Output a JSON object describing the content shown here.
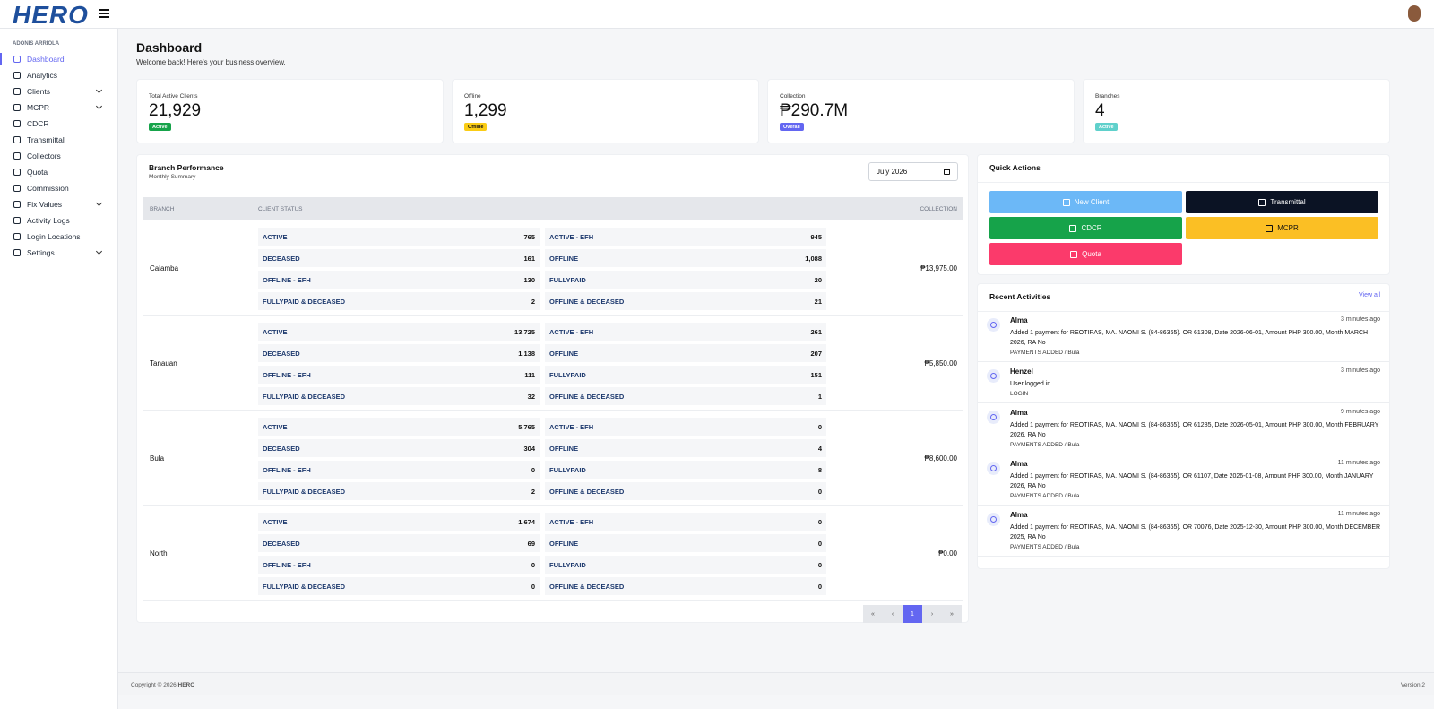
{
  "header": {
    "logo": "HERO"
  },
  "sidebar": {
    "user": "ADONIS ARRIOLA",
    "items": [
      {
        "label": "Dashboard",
        "active": true
      },
      {
        "label": "Analytics"
      },
      {
        "label": "Clients",
        "expandable": true
      },
      {
        "label": "MCPR",
        "expandable": true
      },
      {
        "label": "CDCR"
      },
      {
        "label": "Transmittal"
      },
      {
        "label": "Collectors"
      },
      {
        "label": "Quota"
      },
      {
        "label": "Commission"
      },
      {
        "label": "Fix Values",
        "expandable": true
      },
      {
        "label": "Activity Logs"
      },
      {
        "label": "Login Locations"
      },
      {
        "label": "Settings",
        "expandable": true
      }
    ]
  },
  "page": {
    "title": "Dashboard",
    "subtitle": "Welcome back! Here's your business overview."
  },
  "stats": [
    {
      "label": "Total Active Clients",
      "value": "21,929",
      "badge": "Active",
      "color": "#16a34a"
    },
    {
      "label": "Offline",
      "value": "1,299",
      "badge": "Offline",
      "color": "#facc15"
    },
    {
      "label": "Collection",
      "value": "₱290.7M",
      "badge": "Overall",
      "color": "#6366f1"
    },
    {
      "label": "Branches",
      "value": "4",
      "badge": "Active",
      "color": "#5fd0cb"
    }
  ],
  "branch_performance": {
    "title": "Branch Performance",
    "subtitle": "Monthly Summary",
    "month": "July 2026",
    "columns": [
      "BRANCH",
      "CLIENT STATUS",
      "COLLECTION"
    ],
    "rows": [
      {
        "branch": "Calamba",
        "statuses": [
          [
            "ACTIVE",
            "765"
          ],
          [
            "ACTIVE - EFH",
            "945"
          ],
          [
            "DECEASED",
            "161"
          ],
          [
            "OFFLINE",
            "1,088"
          ],
          [
            "OFFLINE - EFH",
            "130"
          ],
          [
            "FULLYPAID",
            "20"
          ],
          [
            "FULLYPAID & DECEASED",
            "2"
          ],
          [
            "OFFLINE & DECEASED",
            "21"
          ]
        ],
        "collection": "₱13,975.00"
      },
      {
        "branch": "Tanauan",
        "statuses": [
          [
            "ACTIVE",
            "13,725"
          ],
          [
            "ACTIVE - EFH",
            "261"
          ],
          [
            "DECEASED",
            "1,138"
          ],
          [
            "OFFLINE",
            "207"
          ],
          [
            "OFFLINE - EFH",
            "111"
          ],
          [
            "FULLYPAID",
            "151"
          ],
          [
            "FULLYPAID & DECEASED",
            "32"
          ],
          [
            "OFFLINE & DECEASED",
            "1"
          ]
        ],
        "collection": "₱5,850.00"
      },
      {
        "branch": "Bula",
        "statuses": [
          [
            "ACTIVE",
            "5,765"
          ],
          [
            "ACTIVE - EFH",
            "0"
          ],
          [
            "DECEASED",
            "304"
          ],
          [
            "OFFLINE",
            "4"
          ],
          [
            "OFFLINE - EFH",
            "0"
          ],
          [
            "FULLYPAID",
            "8"
          ],
          [
            "FULLYPAID & DECEASED",
            "2"
          ],
          [
            "OFFLINE & DECEASED",
            "0"
          ]
        ],
        "collection": "₱8,600.00"
      },
      {
        "branch": "North",
        "statuses": [
          [
            "ACTIVE",
            "1,674"
          ],
          [
            "ACTIVE - EFH",
            "0"
          ],
          [
            "DECEASED",
            "69"
          ],
          [
            "OFFLINE",
            "0"
          ],
          [
            "OFFLINE - EFH",
            "0"
          ],
          [
            "FULLYPAID",
            "0"
          ],
          [
            "FULLYPAID & DECEASED",
            "0"
          ],
          [
            "OFFLINE & DECEASED",
            "0"
          ]
        ],
        "collection": "₱0.00"
      }
    ],
    "pagination": [
      "«",
      "‹",
      "1",
      "›",
      "»"
    ],
    "current_page": "1"
  },
  "quick_actions": {
    "title": "Quick Actions",
    "buttons": [
      {
        "label": "New Client",
        "color": "#6cb8f7"
      },
      {
        "label": "Transmittal",
        "color": "#0b1324"
      },
      {
        "label": "CDCR",
        "color": "#16a34a"
      },
      {
        "label": "MCPR",
        "color": "#fbbf24"
      },
      {
        "label": "Quota",
        "color": "#fb3a6b"
      }
    ]
  },
  "recent_activities": {
    "title": "Recent Activities",
    "link": "View all",
    "items": [
      {
        "user": "Alma",
        "time": "3 minutes ago",
        "text": "Added 1 payment for REOTIRAS, MA. NAOMI S. (84-86365). OR 61308, Date 2026-06-01, Amount PHP 300.00, Month MARCH 2026, RA No",
        "tag": "PAYMENTS ADDED / Bula"
      },
      {
        "user": "Henzel",
        "time": "3 minutes ago",
        "text": "User logged in",
        "tag": "LOGIN"
      },
      {
        "user": "Alma",
        "time": "9 minutes ago",
        "text": "Added 1 payment for REOTIRAS, MA. NAOMI S. (84-86365). OR 61285, Date 2026-05-01, Amount PHP 300.00, Month FEBRUARY 2026, RA No",
        "tag": "PAYMENTS ADDED / Bula"
      },
      {
        "user": "Alma",
        "time": "11 minutes ago",
        "text": "Added 1 payment for REOTIRAS, MA. NAOMI S. (84-86365). OR 61107, Date 2026-01-08, Amount PHP 300.00, Month JANUARY 2026, RA No",
        "tag": "PAYMENTS ADDED / Bula"
      },
      {
        "user": "Alma",
        "time": "11 minutes ago",
        "text": "Added 1 payment for REOTIRAS, MA. NAOMI S. (84-86365). OR 70076, Date 2025-12-30, Amount PHP 300.00, Month DECEMBER 2025, RA No",
        "tag": "PAYMENTS ADDED / Bula"
      }
    ]
  },
  "footer": {
    "copyright": "Copyright © 2026",
    "brand": "HERO",
    "version": "Version 2"
  }
}
